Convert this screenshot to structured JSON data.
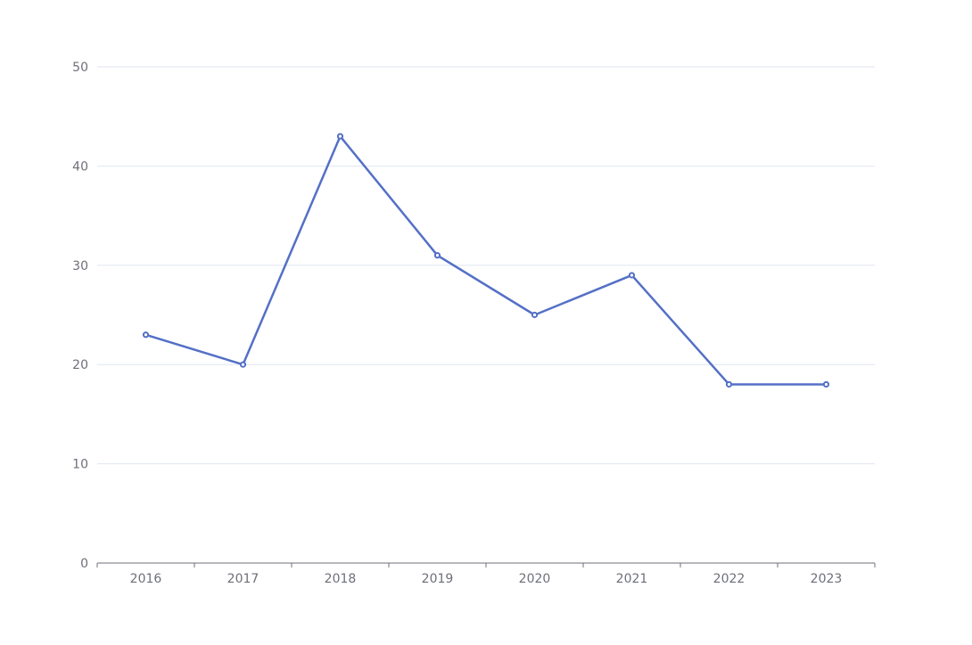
{
  "chart_data": {
    "type": "line",
    "title": "",
    "xlabel": "",
    "ylabel": "",
    "categories": [
      "2016",
      "2017",
      "2018",
      "2019",
      "2020",
      "2021",
      "2022",
      "2023"
    ],
    "series": [
      {
        "values": [
          23,
          20,
          43,
          31,
          25,
          29,
          18,
          18
        ]
      }
    ],
    "ylim": [
      0,
      50
    ],
    "yticks": [
      "0",
      "10",
      "20",
      "30",
      "40",
      "50"
    ],
    "grid": "horizontal",
    "legend": "none",
    "colors": {
      "line": "#5470c6",
      "marker_fill": "#ffffff",
      "grid": "#e0e6f1",
      "axis": "#6e7079",
      "text": "#6e7079"
    }
  }
}
